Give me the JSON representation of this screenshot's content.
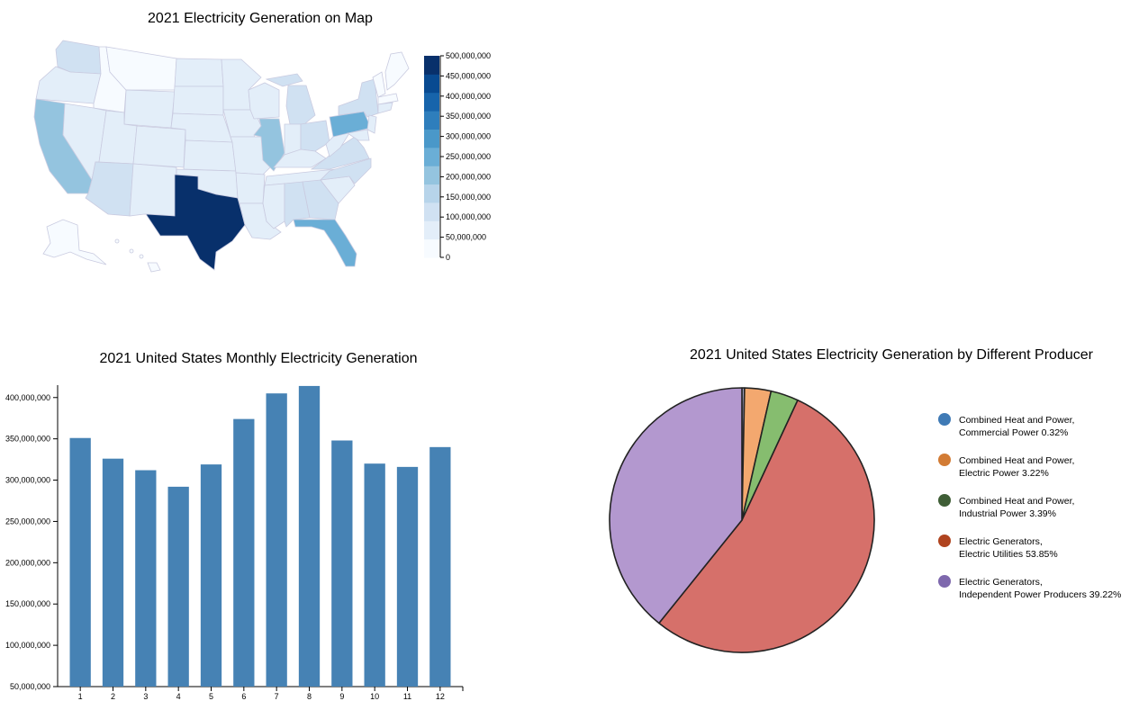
{
  "chart_data": [
    {
      "type": "choropleth-map",
      "title": "2021 Electricity Generation on Map",
      "color_scale": {
        "ticks": [
          "500,000,000",
          "450,000,000",
          "400,000,000",
          "350,000,000",
          "300,000,000",
          "250,000,000",
          "200,000,000",
          "150,000,000",
          "100,000,000",
          "50,000,000",
          "0"
        ],
        "tick_values": [
          500000000,
          450000000,
          400000000,
          350000000,
          300000000,
          250000000,
          200000000,
          150000000,
          100000000,
          50000000,
          0
        ],
        "range": [
          0,
          500000000
        ],
        "colors": [
          "#f7fbff",
          "#e3eef9",
          "#d0e1f2",
          "#b7d4ea",
          "#94c4df",
          "#6aaed6",
          "#4a98c9",
          "#2e7ebc",
          "#1764ab",
          "#084a91",
          "#08306b"
        ]
      },
      "highlighted_states": [
        {
          "name": "Texas",
          "color": "#08306b"
        },
        {
          "name": "Pennsylvania",
          "color": "#6aaed6"
        },
        {
          "name": "Florida",
          "color": "#6aaed6"
        },
        {
          "name": "California",
          "color": "#94c4df"
        },
        {
          "name": "Illinois",
          "color": "#94c4df"
        }
      ]
    },
    {
      "type": "bar",
      "title": "2021 United States Monthly Electricity Generation",
      "categories": [
        "1",
        "2",
        "3",
        "4",
        "5",
        "6",
        "7",
        "8",
        "9",
        "10",
        "11",
        "12"
      ],
      "values": [
        351000000,
        326000000,
        312000000,
        292000000,
        319000000,
        374000000,
        405000000,
        414000000,
        348000000,
        320000000,
        316000000,
        340000000
      ],
      "ylim": [
        50000000,
        415000000
      ],
      "yticks": [
        50000000,
        100000000,
        150000000,
        200000000,
        250000000,
        300000000,
        350000000,
        400000000
      ],
      "ytick_labels": [
        "50,000,000",
        "100,000,000",
        "150,000,000",
        "200,000,000",
        "250,000,000",
        "300,000,000",
        "350,000,000",
        "400,000,000"
      ],
      "bar_color": "#4682b4"
    },
    {
      "type": "pie",
      "title": "2021 United States Electricity Generation by Different Producer",
      "slices": [
        {
          "line1": "Combined Heat and Power,",
          "line2": "Commercial Power 0.32%",
          "value": 0.32,
          "color": "#9fa0bc",
          "legend_color": "#3f7ab5"
        },
        {
          "line1": "Combined Heat and Power,",
          "line2": "Electric Power 3.22%",
          "value": 3.22,
          "color": "#f3a86f",
          "legend_color": "#d27b34"
        },
        {
          "line1": "Combined Heat and Power,",
          "line2": "Industrial Power 3.39%",
          "value": 3.39,
          "color": "#86bd6f",
          "legend_color": "#3f5e36"
        },
        {
          "line1": "Electric Generators,",
          "line2": "Electric Utilities 53.85%",
          "value": 53.85,
          "color": "#d6706a",
          "legend_color": "#b0441f"
        },
        {
          "line1": "Electric Generators,",
          "line2": "Independent Power Producers 39.22%",
          "value": 39.22,
          "color": "#b398cf",
          "legend_color": "#7e68ad"
        }
      ]
    }
  ]
}
